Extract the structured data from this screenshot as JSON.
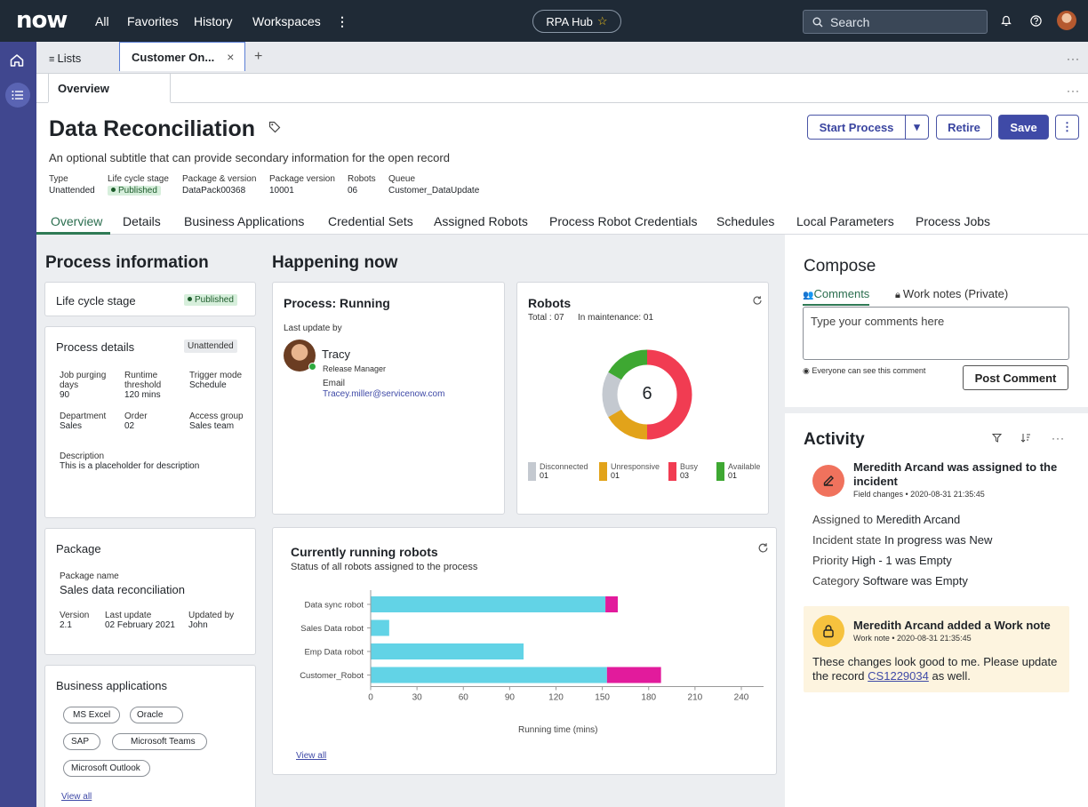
{
  "topbar": {
    "logo": "now",
    "nav": [
      "All",
      "Favorites",
      "History",
      "Workspaces"
    ],
    "more": "⋮",
    "hub": "RPA Hub",
    "hub_star": "☆",
    "search": "Search"
  },
  "tabs": {
    "lists": "Lists",
    "record_tab": "Customer On...",
    "close": "×",
    "add": "+",
    "more": "···"
  },
  "subtabs": {
    "overview": "Overview",
    "more": "···"
  },
  "record": {
    "title": "Data Reconciliation",
    "subtitle": "An optional subtitle that can provide secondary information for the open record",
    "meta": [
      {
        "k": "Type",
        "v": "Unattended"
      },
      {
        "k": "Life cycle stage",
        "v": "Published"
      },
      {
        "k": "Package & version",
        "v": "DataPack00368"
      },
      {
        "k": "Package version",
        "v": "10001"
      },
      {
        "k": "Robots",
        "v": "06"
      },
      {
        "k": "Queue",
        "v": "Customer_DataUpdate"
      }
    ]
  },
  "actions": {
    "start": "Start Process",
    "retire": "Retire",
    "save": "Save",
    "more": "⋮",
    "caret": "▾"
  },
  "nav_tabs": [
    "Overview",
    "Details",
    "Business Applications",
    "Credential Sets",
    "Assigned Robots",
    "Process Robot Credentials",
    "Schedules",
    "Local Parameters",
    "Process Jobs"
  ],
  "process_info": {
    "heading": "Process information",
    "lifecycle_label": "Life cycle stage",
    "lifecycle_value": "Published",
    "details_title": "Process details",
    "details_badge": "Unattended",
    "fields": [
      {
        "k": "Job purging days",
        "v": "90"
      },
      {
        "k": "Runtime threshold",
        "v": "120 mins"
      },
      {
        "k": "Trigger mode",
        "v": "Schedule"
      },
      {
        "k": "Department",
        "v": "Sales"
      },
      {
        "k": "Order",
        "v": "02"
      },
      {
        "k": "Access group",
        "v": "Sales team"
      }
    ],
    "description_label": "Description",
    "description": "This is a placeholder for description",
    "package_title": "Package",
    "package_name_label": "Package name",
    "package_name": "Sales data reconciliation",
    "package_fields": [
      {
        "k": "Version",
        "v": "2.1"
      },
      {
        "k": "Last update",
        "v": "02 February 2021"
      },
      {
        "k": "Updated by",
        "v": "John"
      }
    ],
    "business_title": "Business applications",
    "apps": [
      "MS Excel",
      "Oracle",
      "SAP",
      "Microsoft Teams",
      "Microsoft Outlook"
    ],
    "view_all": "View all"
  },
  "happening": {
    "heading": "Happening now",
    "running_title": "Process: Running",
    "last_update": "Last update by",
    "person": "Tracy",
    "role": "Release Manager",
    "email_label": "Email",
    "email": "Tracey.miller@servicenow.com",
    "robots_title": "Robots",
    "robots_total": "Total : 07",
    "robots_maint": "In maintenance: 01",
    "robots_center": "6",
    "legend": [
      {
        "name": "Disconnected",
        "value": "01",
        "color": "#c4c9d0"
      },
      {
        "name": "Unresponsive",
        "value": "01",
        "color": "#e2a31a"
      },
      {
        "name": "Busy",
        "value": "03",
        "color": "#f13c52"
      },
      {
        "name": "Available",
        "value": "01",
        "color": "#3ea832"
      }
    ],
    "donut": [
      {
        "label": "Busy",
        "frac": 0.5,
        "color": "#f13c52"
      },
      {
        "label": "Unresponsive",
        "frac": 0.1667,
        "color": "#e2a31a"
      },
      {
        "label": "Disconnected",
        "frac": 0.1667,
        "color": "#c4c9d0"
      },
      {
        "label": "Available",
        "frac": 0.1667,
        "color": "#3ea832"
      }
    ]
  },
  "chart_data": {
    "type": "bar",
    "title": "Currently running robots",
    "subtitle": "Status of all robots assigned to the process",
    "xlabel": "Running time  (mins)",
    "categories": [
      "Data sync robot",
      "Sales  Data robot",
      "Emp Data robot",
      "Customer_Robot"
    ],
    "series": [
      {
        "values": [
          152,
          12,
          99,
          153
        ],
        "color": "#62d3e6"
      },
      {
        "values": [
          8,
          0,
          0,
          35
        ],
        "color": "#e21b9c"
      }
    ],
    "xlim": [
      0,
      240
    ],
    "ticks": [
      "0",
      "30",
      "60",
      "90",
      "120",
      "150",
      "180",
      "210",
      "240"
    ],
    "view_all": "View all"
  },
  "compose": {
    "heading": "Compose",
    "tab_comments": "Comments",
    "tab_notes": "Work notes (Private)",
    "placeholder": "Type your comments here",
    "visibility": "Everyone can see this comment",
    "post": "Post Comment"
  },
  "activity": {
    "heading": "Activity",
    "item1": {
      "title": "Meredith Arcand was assigned to the incident",
      "meta": "Field changes  •  2020-08-31 21:35:45",
      "rows": [
        {
          "k": "Assigned to",
          "v": "Meredith Arcand"
        },
        {
          "k": "Incident state",
          "v": "In progress was New"
        },
        {
          "k": "Priority",
          "v": "High - 1 was Empty"
        },
        {
          "k": "Category",
          "v": "Software was Empty"
        }
      ]
    },
    "item2": {
      "title": "Meredith Arcand added a Work note",
      "meta": "Work note  •  2020-08-31 21:35:45",
      "body": "These changes look good to me. Please update the record",
      "link": "CS1229034",
      "tail": "as well."
    }
  }
}
